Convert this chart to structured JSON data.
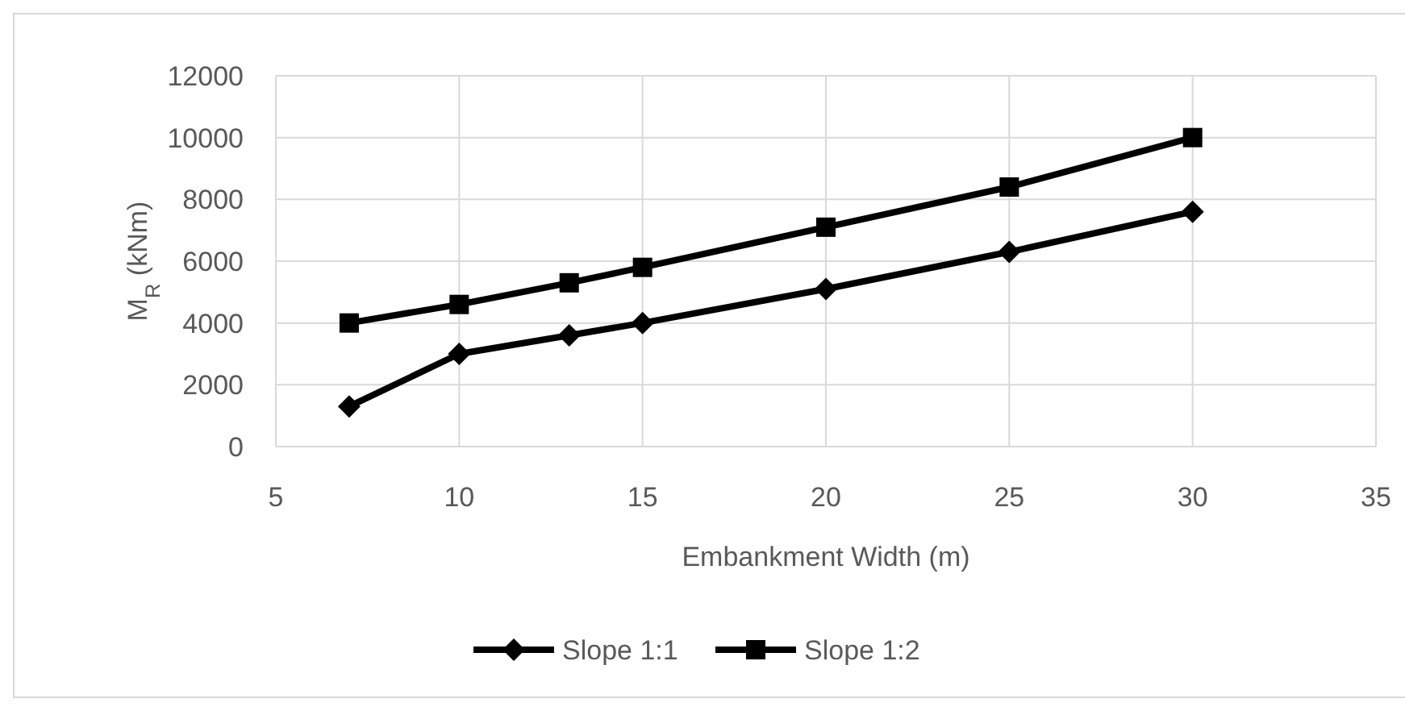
{
  "chart_data": {
    "type": "line",
    "xlabel": "Embankment Width (m)",
    "ylabel": "M$_{R}$ (kNm)",
    "x": [
      7,
      10,
      13,
      15,
      20,
      25,
      30
    ],
    "series": [
      {
        "name": "Slope 1:1",
        "color": "#000000",
        "marker": "diamond",
        "values": [
          1300,
          3000,
          3600,
          4000,
          5100,
          6300,
          7600
        ]
      },
      {
        "name": "Slope 1:2",
        "color": "#000000",
        "marker": "square",
        "values": [
          4000,
          4600,
          5300,
          5800,
          7100,
          8400,
          10000
        ]
      }
    ],
    "xlim": [
      5,
      35
    ],
    "xticks": [
      5,
      10,
      15,
      20,
      25,
      30,
      35
    ],
    "ylim": [
      0,
      12000
    ],
    "yticks": [
      0,
      2000,
      4000,
      6000,
      8000,
      10000,
      12000
    ],
    "grid": true,
    "legend": "bottom",
    "line_style": "solid"
  }
}
